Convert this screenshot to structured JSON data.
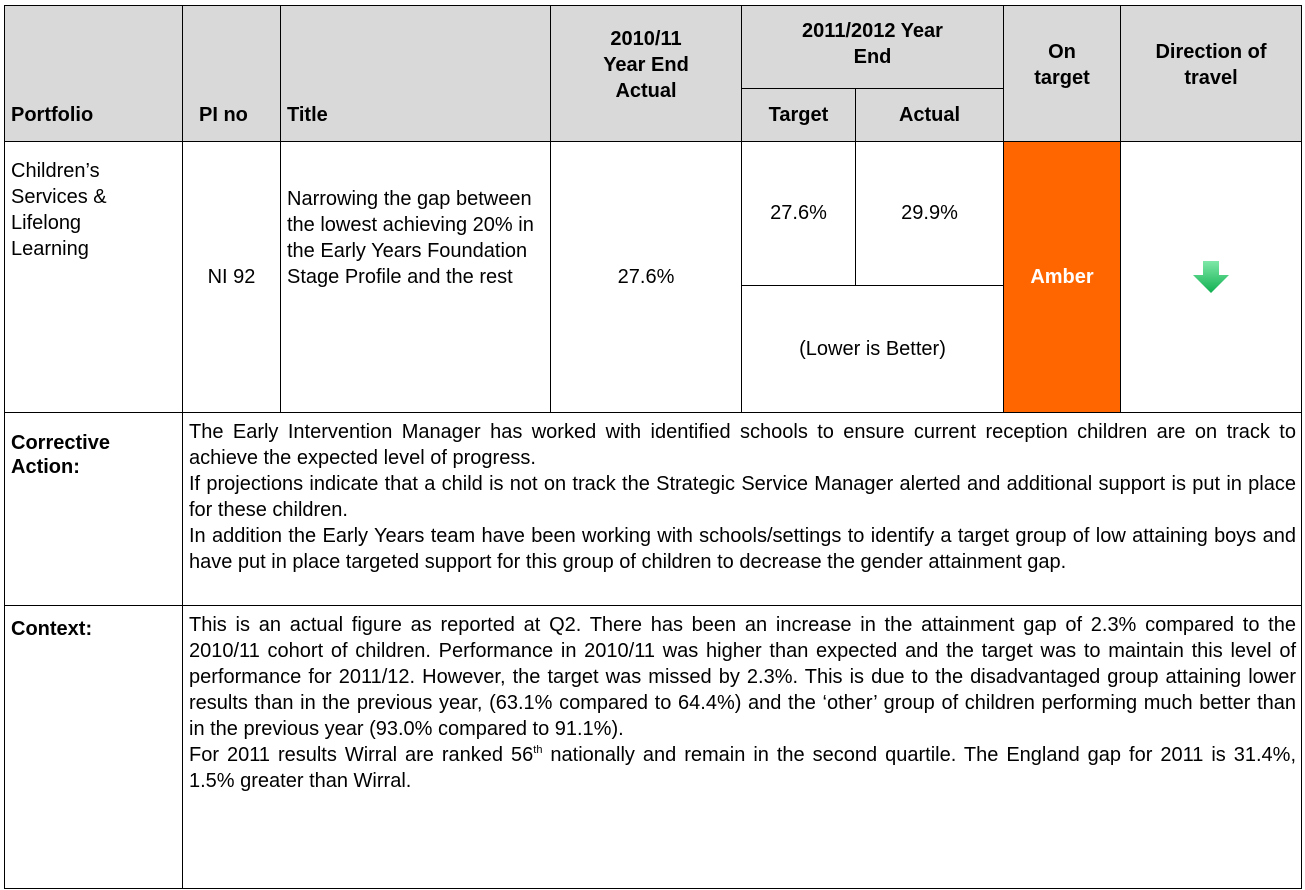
{
  "header": {
    "portfolio": "Portfolio",
    "pi_no": "PI no",
    "title": "Title",
    "year_2010_11": "2010/11 Year End Actual",
    "year_2011_12": "2011/2012 Year End",
    "target": "Target",
    "actual": "Actual",
    "on_target": "On target",
    "direction": "Direction of travel"
  },
  "row": {
    "portfolio": "Children’s Services & Lifelong Learning",
    "pi_no": "NI 92",
    "title": "Narrowing the gap between the lowest achieving 20% in the Early Years Foundation Stage Profile and the rest",
    "actual_2010_11": "27.6%",
    "target": "27.6%",
    "actual": "29.9%",
    "note": "(Lower is Better)",
    "status": "Amber"
  },
  "corrective_action": {
    "label": "Corrective Action:",
    "paragraphs": [
      "The Early Intervention Manager has worked with identified schools to ensure current reception children are on track to achieve the expected level of progress.",
      "If projections indicate that a child is not on track the Strategic Service Manager alerted and additional support is put in place for these children.",
      "In addition the Early Years team have been working with schools/settings to identify a target group of low attaining boys and have put in place targeted support for this group of children to decrease the gender attainment gap."
    ]
  },
  "context": {
    "label": "Context:",
    "paragraph_1": "This is an actual figure as reported at Q2. There has been an increase in the attainment gap of 2.3% compared to the 2010/11 cohort of children. Performance in 2010/11 was higher than expected and the target was to maintain this level of performance for 2011/12. However, the target was missed by 2.3%. This is due to the disadvantaged group attaining lower results than in the previous year, (63.1% compared to 64.4%) and the ‘other’ group of children performing much better than in the previous year (93.0% compared to 91.1%).",
    "paragraph_2": {
      "before": "For 2011 results Wirral are ranked 56",
      "sup": "th",
      "after": " nationally and remain in the second quartile. The England gap for 2011 is 31.4%, 1.5% greater than Wirral."
    }
  }
}
